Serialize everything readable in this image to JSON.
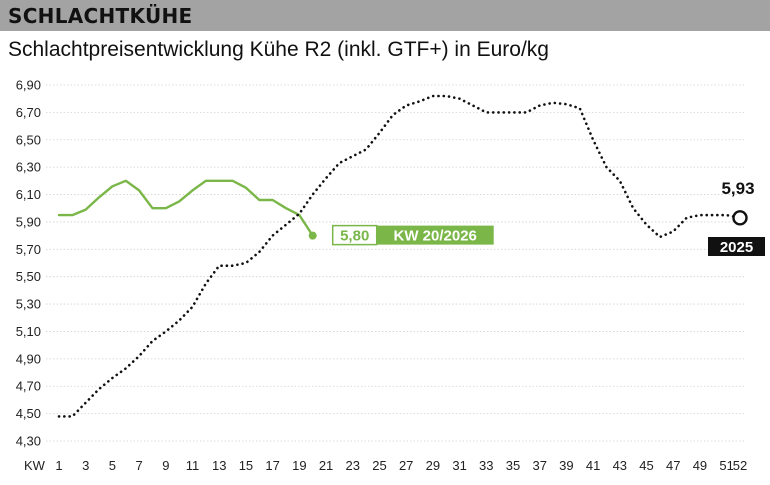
{
  "header": {
    "title": "SCHLACHTKÜHE"
  },
  "chart_data": {
    "type": "line",
    "title": "Schlachtpreisentwicklung Kühe R2 (inkl. GTF+) in Euro/kg",
    "x_prefix": "KW",
    "x_ticks": [
      1,
      3,
      5,
      7,
      9,
      11,
      13,
      15,
      17,
      19,
      21,
      23,
      25,
      27,
      29,
      31,
      33,
      35,
      37,
      39,
      41,
      43,
      45,
      47,
      49,
      51,
      52
    ],
    "y_ticks": [
      "4,30",
      "4,50",
      "4,70",
      "4,90",
      "5,10",
      "5,30",
      "5,50",
      "5,70",
      "5,90",
      "6,10",
      "6,30",
      "6,50",
      "6,70",
      "6,90"
    ],
    "ylim": [
      4.3,
      6.9
    ],
    "xlim": [
      1,
      52
    ],
    "series": [
      {
        "name": "2026",
        "style": "solid",
        "color": "#7ab648",
        "x": [
          1,
          2,
          3,
          4,
          5,
          6,
          7,
          8,
          9,
          10,
          11,
          12,
          13,
          14,
          15,
          16,
          17,
          18,
          19,
          20
        ],
        "y": [
          5.95,
          5.95,
          5.99,
          6.08,
          6.16,
          6.2,
          6.13,
          6.0,
          6.0,
          6.05,
          6.13,
          6.2,
          6.2,
          6.2,
          6.15,
          6.06,
          6.06,
          6.0,
          5.95,
          5.8
        ]
      },
      {
        "name": "2025",
        "style": "dotted",
        "color": "#111111",
        "x": [
          1,
          2,
          3,
          4,
          5,
          6,
          7,
          8,
          9,
          10,
          11,
          12,
          13,
          14,
          15,
          16,
          17,
          18,
          19,
          20,
          21,
          22,
          23,
          24,
          25,
          26,
          27,
          28,
          29,
          30,
          31,
          32,
          33,
          34,
          35,
          36,
          37,
          38,
          39,
          40,
          41,
          42,
          43,
          44,
          45,
          46,
          47,
          48,
          49,
          50,
          51,
          52
        ],
        "y": [
          4.48,
          4.48,
          4.58,
          4.68,
          4.76,
          4.83,
          4.92,
          5.03,
          5.1,
          5.18,
          5.28,
          5.45,
          5.58,
          5.58,
          5.6,
          5.68,
          5.8,
          5.88,
          5.96,
          6.1,
          6.22,
          6.33,
          6.38,
          6.43,
          6.55,
          6.68,
          6.75,
          6.78,
          6.82,
          6.82,
          6.8,
          6.75,
          6.7,
          6.7,
          6.7,
          6.7,
          6.75,
          6.77,
          6.76,
          6.73,
          6.5,
          6.3,
          6.2,
          6.0,
          5.88,
          5.79,
          5.83,
          5.93,
          5.95,
          5.95,
          5.95,
          5.93
        ]
      }
    ],
    "annotations": {
      "current_value": "5,80",
      "current_week": "KW 20/2026",
      "end_value": "5,93",
      "end_year": "2025"
    }
  }
}
